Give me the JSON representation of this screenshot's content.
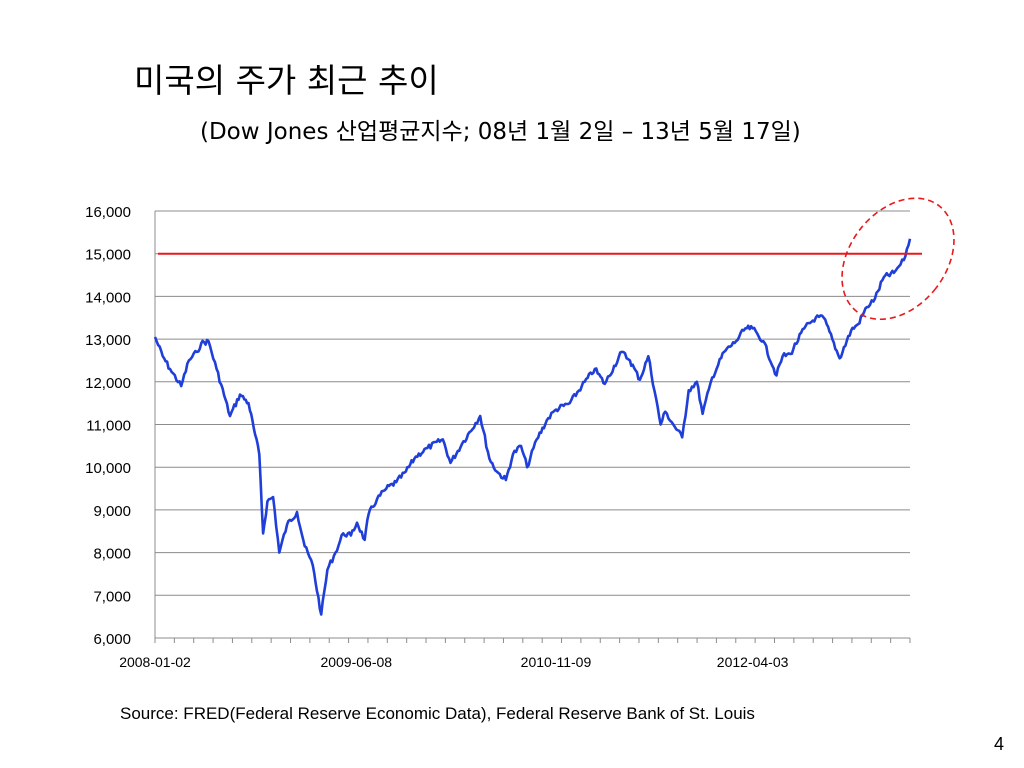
{
  "slide": {
    "title": "미국의 주가 최근 추이",
    "subtitle": "(Dow Jones 산업평균지수; 08년 1월 2일 – 13년 5월 17일)",
    "source": "Source:  FRED(Federal Reserve Economic Data), Federal Reserve Bank of St. Louis",
    "page_number": "4"
  },
  "chart_data": {
    "type": "line",
    "title": "",
    "xlabel": "",
    "ylabel": "",
    "x_tick_labels": [
      "2008-01-02",
      "2009-06-08",
      "2010-11-09",
      "2012-04-03"
    ],
    "y_tick_labels": [
      "6,000",
      "7,000",
      "8,000",
      "9,000",
      "10,000",
      "11,000",
      "12,000",
      "13,000",
      "14,000",
      "15,000",
      "16,000"
    ],
    "ylim": [
      6000,
      16000
    ],
    "xlim": [
      "2008-01-02",
      "2013-05-17"
    ],
    "grid": "horizontal",
    "reference_line": {
      "value": 15000,
      "color": "#e8191b"
    },
    "highlight": {
      "shape": "dashed-ellipse",
      "color": "#e8191b",
      "around": "recent peak 2013"
    },
    "series": [
      {
        "color": "#1f3fd8",
        "x": [
          "2008-01-02",
          "2008-01-22",
          "2008-02-10",
          "2008-03-10",
          "2008-03-30",
          "2008-04-20",
          "2008-05-01",
          "2008-05-20",
          "2008-06-10",
          "2008-07-15",
          "2008-08-10",
          "2008-09-01",
          "2008-09-15",
          "2008-09-29",
          "2008-10-09",
          "2008-10-20",
          "2008-11-04",
          "2008-11-20",
          "2008-12-10",
          "2009-01-05",
          "2009-01-25",
          "2009-02-15",
          "2009-03-09",
          "2009-03-25",
          "2009-04-15",
          "2009-05-05",
          "2009-05-25",
          "2009-06-10",
          "2009-06-30",
          "2009-07-10",
          "2009-08-01",
          "2009-08-25",
          "2009-09-20",
          "2009-10-15",
          "2009-11-10",
          "2009-12-10",
          "2010-01-19",
          "2010-02-08",
          "2010-03-10",
          "2010-04-26",
          "2010-05-20",
          "2010-06-08",
          "2010-07-02",
          "2010-07-20",
          "2010-08-10",
          "2010-08-26",
          "2010-09-20",
          "2010-10-20",
          "2010-11-09",
          "2010-12-15",
          "2011-01-15",
          "2011-02-18",
          "2011-03-16",
          "2011-04-29",
          "2011-05-20",
          "2011-06-15",
          "2011-07-07",
          "2011-08-08",
          "2011-08-20",
          "2011-09-10",
          "2011-10-03",
          "2011-10-20",
          "2011-11-10",
          "2011-11-25",
          "2011-12-20",
          "2012-01-20",
          "2012-02-20",
          "2012-03-15",
          "2012-04-03",
          "2012-05-01",
          "2012-06-04",
          "2012-06-20",
          "2012-07-10",
          "2012-08-15",
          "2012-09-14",
          "2012-10-05",
          "2012-11-15",
          "2012-12-15",
          "2013-01-02",
          "2013-01-25",
          "2013-02-15",
          "2013-03-10",
          "2013-04-05",
          "2013-04-18",
          "2013-05-01",
          "2013-05-17"
        ],
        "values": [
          13050,
          12600,
          12300,
          11900,
          12500,
          12700,
          12900,
          12950,
          12300,
          11200,
          11700,
          11500,
          10900,
          10300,
          8450,
          9200,
          9300,
          8000,
          8650,
          8950,
          8150,
          7700,
          6550,
          7600,
          8000,
          8450,
          8400,
          8700,
          8300,
          8900,
          9250,
          9500,
          9650,
          9900,
          10250,
          10450,
          10650,
          10100,
          10550,
          11200,
          10200,
          9900,
          9700,
          10300,
          10500,
          10000,
          10650,
          11150,
          11350,
          11500,
          11900,
          12300,
          11950,
          12700,
          12500,
          12050,
          12600,
          11000,
          11300,
          11000,
          10700,
          11800,
          12000,
          11250,
          12100,
          12700,
          12950,
          13250,
          13250,
          12950,
          12150,
          12600,
          12650,
          13250,
          13500,
          13500,
          12550,
          13200,
          13350,
          13750,
          13950,
          14450,
          14550,
          14700,
          14850,
          15350
        ]
      }
    ]
  }
}
